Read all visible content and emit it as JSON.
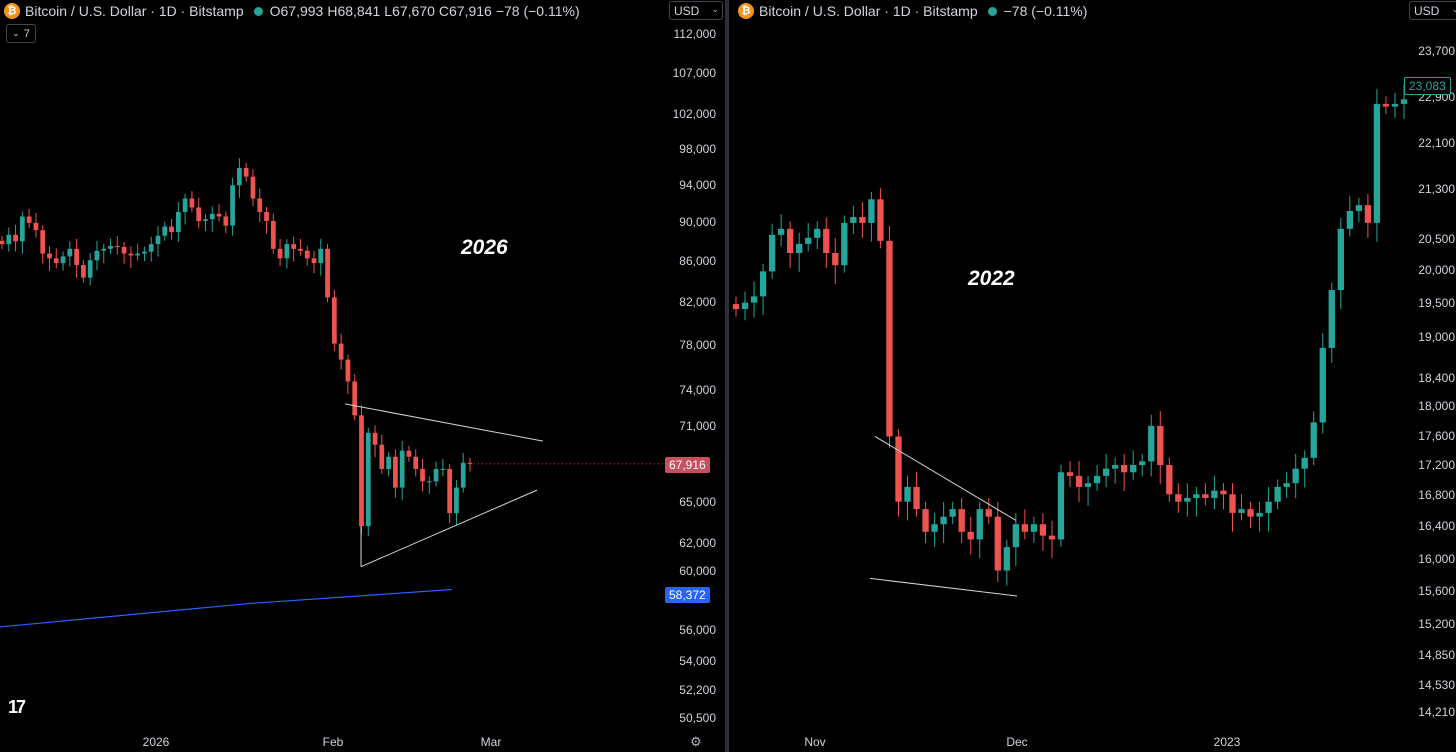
{
  "left": {
    "legend": {
      "symbol_icon": "bitcoin-icon",
      "title": "Bitcoin / U.S. Dollar · 1D · Bitstamp",
      "open": "O67,993",
      "high": "H68,841",
      "low": "L67,670",
      "close": "C67,916",
      "change": "−78 (−0.11%)"
    },
    "indicators_toggle": "7",
    "currency": "USD",
    "year_annotation": "2026",
    "price_ticks": [
      "112,000",
      "107,000",
      "102,000",
      "98,000",
      "94,000",
      "90,000",
      "86,000",
      "82,000",
      "78,000",
      "74,000",
      "71,000",
      "65,000",
      "62,000",
      "60,000",
      "56,000",
      "54,000",
      "52,200",
      "50,500"
    ],
    "last_price": "67,916",
    "ma_price": "58,372",
    "time_ticks": [
      "2026",
      "Feb",
      "Mar"
    ]
  },
  "right": {
    "legend": {
      "symbol_icon": "bitcoin-icon",
      "title": "Bitcoin / U.S. Dollar · 1D · Bitstamp",
      "change": "−78 (−0.11%)"
    },
    "currency": "USD",
    "year_annotation": "2022",
    "price_ticks": [
      "23,700",
      "22,900",
      "22,100",
      "21,300",
      "20,500",
      "20,000",
      "19,500",
      "19,000",
      "18,400",
      "18,000",
      "17,600",
      "17,200",
      "16,800",
      "16,400",
      "16,000",
      "15,600",
      "15,200",
      "14,850",
      "14,530",
      "14,210"
    ],
    "last_price": "23,083",
    "time_ticks": [
      "Nov",
      "Dec",
      "2023"
    ]
  },
  "colors": {
    "up": "#26a69a",
    "down": "#ef5350",
    "last_price_bg": "#c8505e",
    "ma_line": "#2962ff",
    "trendline": "#d1d4dc"
  },
  "chart_data": [
    {
      "type": "candlestick",
      "title": "Bitcoin / U.S. Dollar · 1D · Bitstamp",
      "annotation": "2026",
      "y_scale": "log",
      "ylim": [
        50000,
        114000
      ],
      "candles_close": [
        88500,
        89500,
        88800,
        91500,
        90800,
        90000,
        87500,
        87000,
        86500,
        87200,
        88000,
        86300,
        85000,
        86800,
        87800,
        88000,
        88300,
        88200,
        87500,
        87300,
        87500,
        87700,
        88500,
        89400,
        90400,
        89800,
        92000,
        93500,
        92500,
        91000,
        91200,
        91800,
        91500,
        90500,
        95000,
        97000,
        96000,
        93500,
        92000,
        91000,
        88000,
        87000,
        88500,
        88000,
        87800,
        87000,
        86500,
        88000,
        83000,
        78500,
        77000,
        75000,
        72000,
        63000,
        70500,
        69500,
        67500,
        68500,
        66000,
        69000,
        68500,
        67500,
        66500,
        66500,
        67500,
        67500,
        64000,
        66000,
        68000,
        67916
      ],
      "ma_line": [
        55800,
        58372
      ],
      "trendlines": [
        [
          [
            73000,
            70000
          ],
          [
            69800,
            67800
          ]
        ],
        [
          [
            60000,
            62800
          ],
          [
            65800,
            65800
          ]
        ]
      ]
    },
    {
      "type": "candlestick",
      "title": "Bitcoin / U.S. Dollar · 1D · Bitstamp",
      "annotation": "2022",
      "y_scale": "log",
      "ylim": [
        14100,
        24000
      ],
      "candles_close": [
        19500,
        19600,
        19700,
        20100,
        20700,
        20800,
        20400,
        20550,
        20650,
        20800,
        20400,
        20200,
        20900,
        21000,
        20900,
        21300,
        20600,
        17600,
        16700,
        16900,
        16600,
        16300,
        16400,
        16500,
        16600,
        16300,
        16200,
        16600,
        16500,
        15800,
        16100,
        16400,
        16300,
        16400,
        16250,
        16200,
        17100,
        17050,
        16900,
        16950,
        17050,
        17150,
        17200,
        17100,
        17200,
        17250,
        17750,
        17200,
        16800,
        16700,
        16750,
        16800,
        16750,
        16850,
        16800,
        16550,
        16600,
        16500,
        16550,
        16700,
        16900,
        16950,
        17150,
        17300,
        17800,
        18900,
        19800,
        20800,
        21100,
        21200,
        20900,
        23000,
        22950,
        23000,
        23083
      ],
      "trendlines": [
        [
          [
            17600,
            16500
          ]
        ],
        [
          [
            15700,
            15500
          ]
        ]
      ]
    }
  ]
}
